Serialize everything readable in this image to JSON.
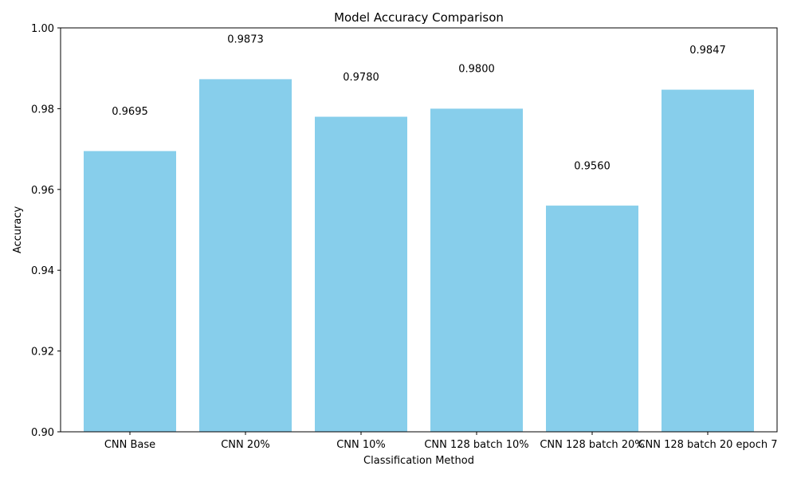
{
  "chart_data": {
    "type": "bar",
    "title": "Model Accuracy Comparison",
    "xlabel": "Classification Method",
    "ylabel": "Accuracy",
    "categories": [
      "CNN Base",
      "CNN 20%",
      "CNN 10%",
      "CNN 128 batch 10%",
      "CNN 128 batch 20%",
      "CNN 128 batch 20 epoch 7"
    ],
    "values": [
      0.9695,
      0.9873,
      0.978,
      0.98,
      0.956,
      0.9847
    ],
    "data_labels": [
      "0.9695",
      "0.9873",
      "0.9780",
      "0.9800",
      "0.9560",
      "0.9847"
    ],
    "ylim": [
      0.9,
      1.0
    ],
    "yticks": [
      0.9,
      0.92,
      0.94,
      0.96,
      0.98,
      1.0
    ],
    "ytick_labels": [
      "0.90",
      "0.92",
      "0.94",
      "0.96",
      "0.98",
      "1.00"
    ],
    "bar_color": "#87ceeb",
    "grid": false,
    "label_offset": 0.01
  }
}
